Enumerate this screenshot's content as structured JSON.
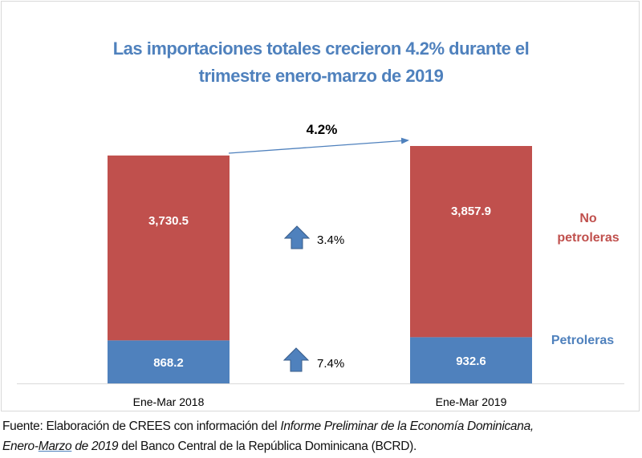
{
  "chart_data": {
    "type": "bar",
    "stacked": true,
    "title": "Las importaciones totales crecieron 4.2% durante el trimestre enero-marzo de 2019",
    "title_lines": [
      "Las importaciones totales crecieron 4.2% durante el",
      "trimestre enero-marzo de 2019"
    ],
    "categories": [
      "Ene-Mar 2018",
      "Ene-Mar 2019"
    ],
    "series": [
      {
        "name": "Petroleras",
        "values": [
          868.2,
          932.6
        ],
        "labels": [
          "868.2",
          "932.6"
        ],
        "color": "#4f81bd"
      },
      {
        "name": "No petroleras",
        "values": [
          3730.5,
          3857.9
        ],
        "labels": [
          "3,730.5",
          "3,857.9"
        ],
        "color": "#c0504d"
      }
    ],
    "legend": {
      "position": "right",
      "entries": [
        {
          "lines": [
            "No",
            "petroleras"
          ],
          "color": "#c0504d"
        },
        {
          "lines": [
            "Petroleras"
          ],
          "color": "#4f81bd"
        }
      ]
    },
    "annotations": {
      "total_growth": "4.2%",
      "no_petroleras_growth": "3.4%",
      "petroleras_growth": "7.4%"
    },
    "xlabel": "",
    "ylabel": "",
    "ylim": [
      0,
      4790.5
    ],
    "grid": false
  },
  "source": {
    "prefix": "Fuente: Elaboración de CREES con información del ",
    "italic1": "Informe Preliminar de la Economía Dominicana,",
    "italic2a": "Enero-",
    "italic2b": "Marzo",
    "italic2c": " de 2019",
    "suffix": " del Banco Central de la República Dominicana (BCRD)."
  }
}
